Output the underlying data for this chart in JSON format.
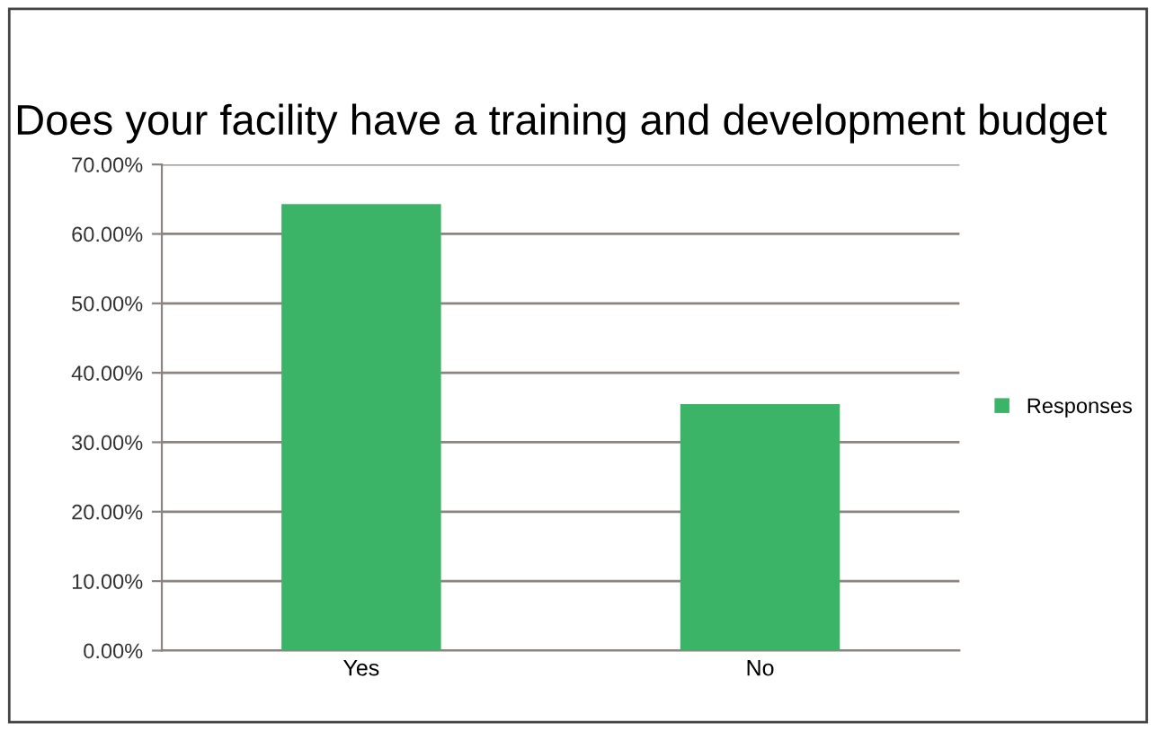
{
  "chart_data": {
    "type": "bar",
    "title": "Does your facility have a training and development budget",
    "categories": [
      "Yes",
      "No"
    ],
    "series": [
      {
        "name": "Responses",
        "color": "#3cb468",
        "values": [
          64.3,
          35.5
        ]
      }
    ],
    "ylim": [
      0,
      70
    ],
    "yticks": [
      {
        "value": 0,
        "label": "0.00%"
      },
      {
        "value": 10,
        "label": "10.00%"
      },
      {
        "value": 20,
        "label": "20.00%"
      },
      {
        "value": 30,
        "label": "30.00%"
      },
      {
        "value": 40,
        "label": "40.00%"
      },
      {
        "value": 50,
        "label": "50.00%"
      },
      {
        "value": 60,
        "label": "60.00%"
      },
      {
        "value": 70,
        "label": "70.00%"
      }
    ],
    "grid": "y",
    "legend": "right"
  }
}
